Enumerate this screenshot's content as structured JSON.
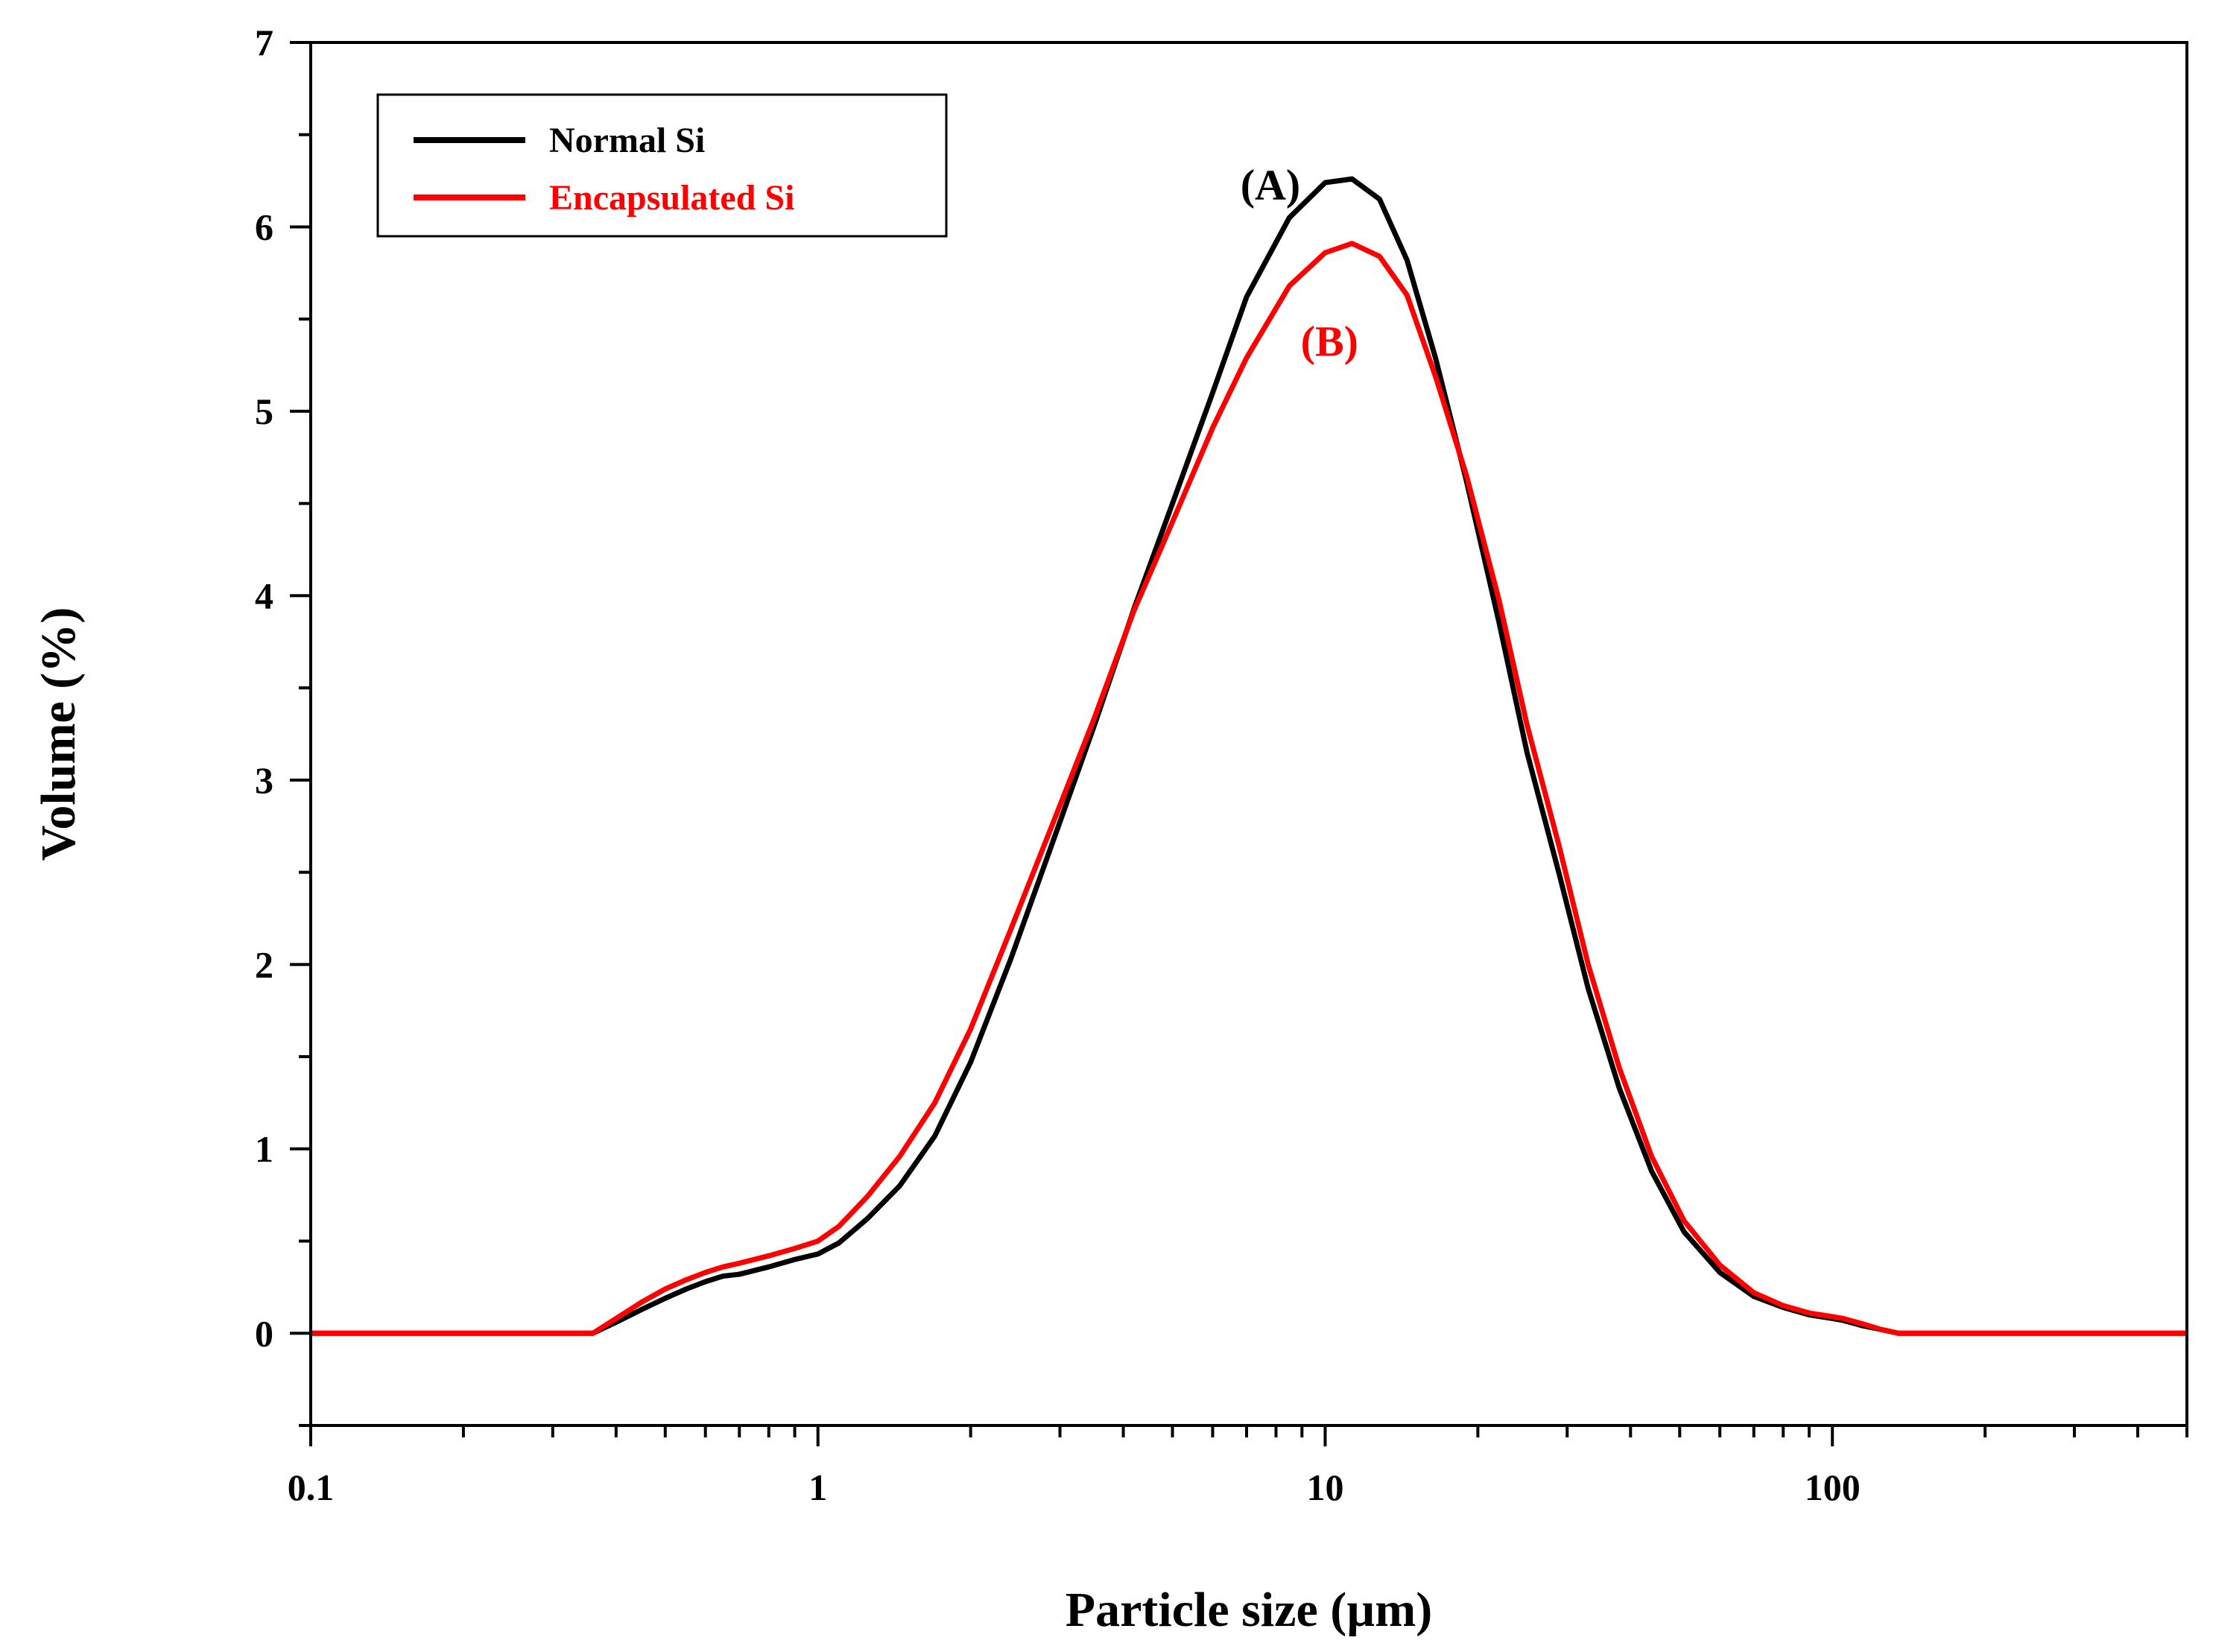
{
  "chart_data": {
    "type": "line",
    "title": "",
    "xlabel": "Particle size (µm)",
    "ylabel": "Volume (%)",
    "xscale": "log",
    "xlim": [
      0.1,
      500
    ],
    "ylim": [
      -0.5,
      7
    ],
    "xticks": [
      {
        "value": 0.1,
        "label": "0.1"
      },
      {
        "value": 1,
        "label": "1"
      },
      {
        "value": 10,
        "label": "10"
      },
      {
        "value": 100,
        "label": "100"
      }
    ],
    "yticks": [
      {
        "value": 0,
        "label": "0"
      },
      {
        "value": 1,
        "label": "1"
      },
      {
        "value": 2,
        "label": "2"
      },
      {
        "value": 3,
        "label": "3"
      },
      {
        "value": 4,
        "label": "4"
      },
      {
        "value": 5,
        "label": "5"
      },
      {
        "value": 6,
        "label": "6"
      },
      {
        "value": 7,
        "label": "7"
      }
    ],
    "grid": false,
    "legend_position": "top-left",
    "series": [
      {
        "name": "Normal Si",
        "color": "#000000",
        "x": [
          0.1,
          0.2,
          0.3,
          0.36,
          0.4,
          0.45,
          0.5,
          0.55,
          0.6,
          0.65,
          0.7,
          0.8,
          0.9,
          1.0,
          1.1,
          1.25,
          1.45,
          1.7,
          2.0,
          2.4,
          2.9,
          3.5,
          4.2,
          5.0,
          6.0,
          7.0,
          8.5,
          10.0,
          11.3,
          12.8,
          14.5,
          16.5,
          19.0,
          22.0,
          25.0,
          29.0,
          33.0,
          38.0,
          44.0,
          51.0,
          60.0,
          70.0,
          80.0,
          90.0,
          100.0,
          105.0,
          115.0,
          125.0,
          135.0,
          200.0,
          300.0,
          500.0
        ],
        "y": [
          0,
          0,
          0,
          0,
          0.06,
          0.13,
          0.19,
          0.24,
          0.28,
          0.31,
          0.32,
          0.36,
          0.4,
          0.43,
          0.49,
          0.62,
          0.8,
          1.07,
          1.47,
          2.03,
          2.66,
          3.29,
          3.93,
          4.5,
          5.1,
          5.62,
          6.05,
          6.24,
          6.26,
          6.15,
          5.82,
          5.29,
          4.62,
          3.86,
          3.15,
          2.48,
          1.87,
          1.33,
          0.88,
          0.55,
          0.33,
          0.2,
          0.14,
          0.1,
          0.08,
          0.07,
          0.04,
          0.02,
          0,
          0,
          0,
          0
        ]
      },
      {
        "name": "Encapsulated Si",
        "color": "#ff0000",
        "x": [
          0.1,
          0.2,
          0.3,
          0.36,
          0.4,
          0.45,
          0.5,
          0.55,
          0.6,
          0.65,
          0.7,
          0.8,
          0.9,
          1.0,
          1.1,
          1.25,
          1.45,
          1.7,
          2.0,
          2.4,
          2.9,
          3.5,
          4.2,
          5.0,
          6.0,
          7.0,
          8.5,
          10.0,
          11.3,
          12.8,
          14.5,
          16.5,
          19.0,
          22.0,
          25.0,
          29.0,
          33.0,
          38.0,
          44.0,
          51.0,
          60.0,
          70.0,
          80.0,
          90.0,
          100.0,
          105.0,
          115.0,
          125.0,
          135.0,
          200.0,
          300.0,
          500.0
        ],
        "y": [
          0,
          0,
          0,
          0,
          0.08,
          0.17,
          0.24,
          0.29,
          0.33,
          0.36,
          0.38,
          0.42,
          0.46,
          0.5,
          0.58,
          0.74,
          0.96,
          1.25,
          1.65,
          2.19,
          2.76,
          3.33,
          3.92,
          4.4,
          4.91,
          5.29,
          5.68,
          5.86,
          5.91,
          5.84,
          5.63,
          5.19,
          4.65,
          3.98,
          3.3,
          2.63,
          2.0,
          1.44,
          0.96,
          0.61,
          0.37,
          0.22,
          0.15,
          0.11,
          0.09,
          0.08,
          0.05,
          0.02,
          0,
          0,
          0,
          0
        ]
      }
    ],
    "annotations": [
      {
        "text": "(A)",
        "series": "Normal Si",
        "color": "#000000",
        "anchor_x": 7.8,
        "anchor_y": 6.15
      },
      {
        "text": "(B)",
        "series": "Encapsulated Si",
        "color": "#ff0000",
        "anchor_x": 10.2,
        "anchor_y": 5.3
      }
    ]
  }
}
